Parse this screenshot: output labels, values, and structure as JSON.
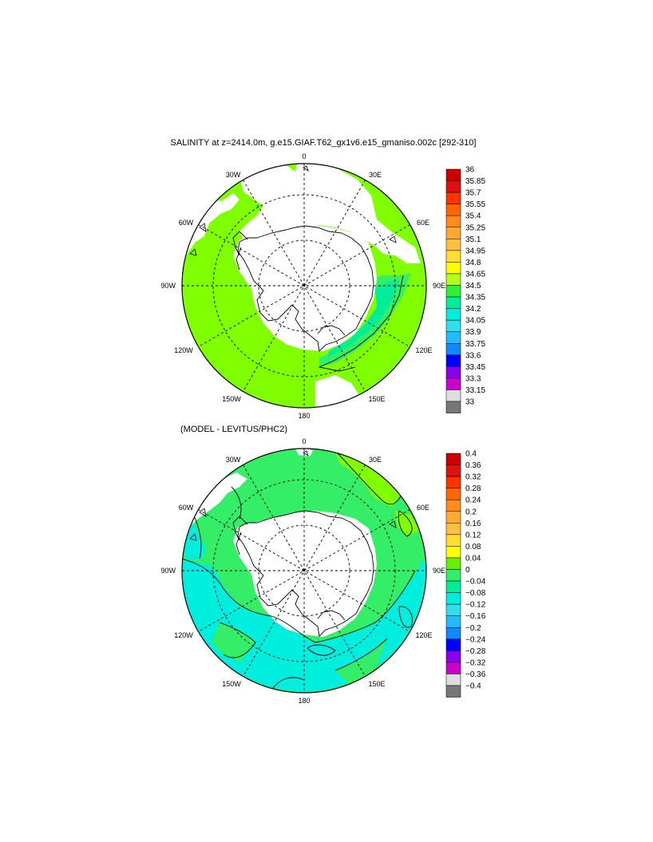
{
  "top_panel": {
    "title": "SALINITY at z=2414.0m, g.e15.GIAF.T62_gx1v6.e15_gmaniso.002c [292-310]",
    "lon_labels": {
      "0": "0",
      "30E": "30E",
      "60E": "60E",
      "90E": "90E",
      "120E": "120E",
      "150E": "150E",
      "180": "180",
      "150W": "150W",
      "120W": "120W",
      "90W": "90W",
      "60W": "60W",
      "30W": "30W"
    },
    "colorbar": {
      "labels": [
        "36",
        "35.85",
        "35.7",
        "35.55",
        "35.4",
        "35.25",
        "35.1",
        "34.95",
        "34.8",
        "34.65",
        "34.5",
        "34.35",
        "34.2",
        "34.05",
        "33.9",
        "33.75",
        "33.6",
        "33.45",
        "33.3",
        "33.15",
        "33"
      ],
      "colors": [
        "#cc0000",
        "#e01010",
        "#ff3300",
        "#ff6600",
        "#ff8c1a",
        "#ffa833",
        "#ffc040",
        "#ffdd33",
        "#ffff00",
        "#b3ff1a",
        "#33ee33",
        "#00ee99",
        "#00eedd",
        "#33ddee",
        "#22bbff",
        "#1188ff",
        "#0000ff",
        "#8800ee",
        "#cc00cc",
        "#dddddd",
        "#777777"
      ]
    },
    "field_colors": {
      "main": "#80ff00",
      "near_coast": "#33ee66",
      "deep_east": "#00ee99"
    }
  },
  "bottom_panel": {
    "title": "(MODEL - LEVITUS/PHC2)",
    "lon_labels": {
      "0": "0",
      "30E": "30E",
      "60E": "60E",
      "90E": "90E",
      "120E": "120E",
      "150E": "150E",
      "180": "180",
      "150W": "150W",
      "120W": "120W",
      "90W": "90W",
      "60W": "60W",
      "30W": "30W"
    },
    "colorbar": {
      "labels": [
        "0.4",
        "0.36",
        "0.32",
        "0.28",
        "0.24",
        "0.2",
        "0.16",
        "0.12",
        "0.08",
        "0.04",
        "0",
        "−0.04",
        "−0.08",
        "−0.12",
        "−0.16",
        "−0.2",
        "−0.24",
        "−0.28",
        "−0.32",
        "−0.36",
        "−0.4"
      ],
      "colors": [
        "#cc0000",
        "#e01010",
        "#ff3300",
        "#ff6600",
        "#ff8c1a",
        "#ffa833",
        "#ffc040",
        "#ffdd33",
        "#ffff00",
        "#66ee00",
        "#33ee66",
        "#00ee99",
        "#00eedd",
        "#33ddee",
        "#22bbff",
        "#1188ff",
        "#0000ff",
        "#8800ee",
        "#cc00cc",
        "#dddddd",
        "#777777"
      ]
    },
    "field_colors": {
      "main": "#33ee66",
      "cyan": "#00eedd",
      "positive": "#80ff00"
    }
  }
}
